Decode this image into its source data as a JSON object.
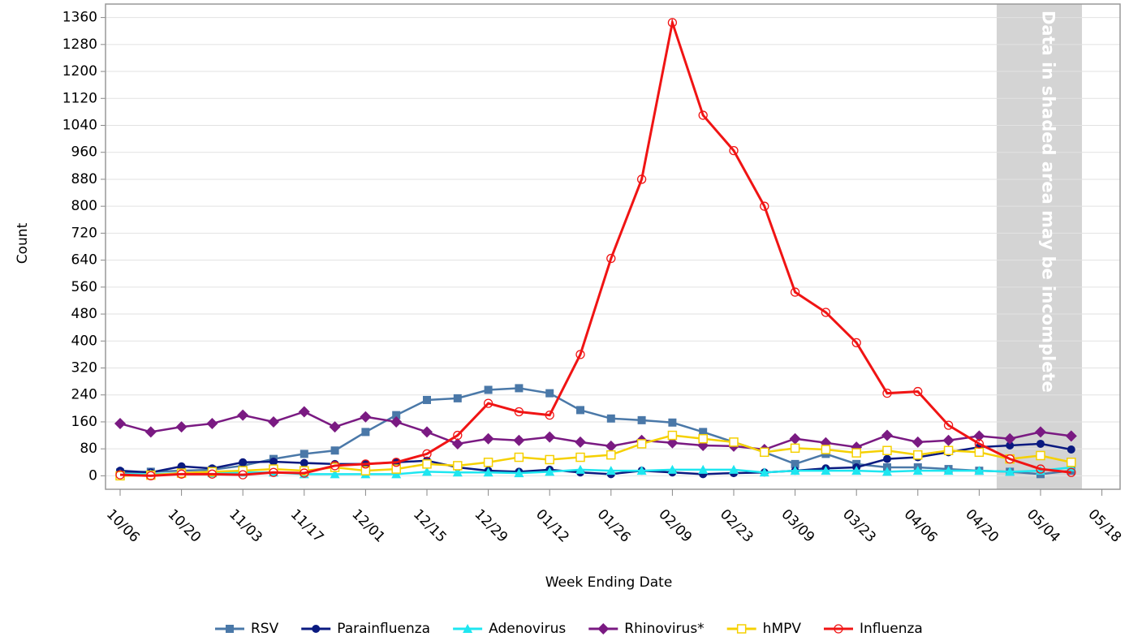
{
  "chart_data": {
    "type": "line",
    "x_label": "Week Ending Date",
    "y_label": "Count",
    "annotation": "Data in shaded area may be incomplete",
    "categories": [
      "10/06",
      null,
      "10/20",
      null,
      "11/03",
      null,
      "11/17",
      null,
      "12/01",
      null,
      "12/15",
      null,
      "12/29",
      null,
      "01/12",
      null,
      "01/26",
      null,
      "02/09",
      null,
      "02/23",
      null,
      "03/09",
      null,
      "03/23",
      null,
      "04/06",
      null,
      "04/20",
      null,
      "05/04",
      null,
      "05/18"
    ],
    "ylim": [
      -40,
      1400
    ],
    "yticks": [
      0,
      80,
      160,
      240,
      320,
      400,
      480,
      560,
      640,
      720,
      800,
      880,
      960,
      1040,
      1120,
      1200,
      1280,
      1360
    ],
    "grid": true,
    "legend": "bottom",
    "series": [
      {
        "name": "RSV",
        "color": "#4a78a8",
        "marker": "square",
        "values": [
          10,
          12,
          15,
          18,
          30,
          50,
          65,
          75,
          130,
          180,
          225,
          230,
          255,
          260,
          245,
          195,
          170,
          165,
          158,
          130,
          100,
          70,
          35,
          65,
          35,
          25,
          25,
          20,
          15,
          12,
          5,
          15,
          null
        ]
      },
      {
        "name": "Parainfluenza",
        "color": "#0a1a80",
        "marker": "circle",
        "values": [
          15,
          10,
          28,
          22,
          40,
          42,
          38,
          35,
          35,
          40,
          45,
          25,
          15,
          12,
          18,
          10,
          5,
          15,
          10,
          5,
          8,
          10,
          15,
          22,
          25,
          50,
          55,
          70,
          85,
          90,
          95,
          78,
          null
        ]
      },
      {
        "name": "Adenovirus",
        "color": "#1ee6f0",
        "marker": "triangle",
        "values": [
          5,
          5,
          8,
          8,
          10,
          10,
          5,
          5,
          5,
          5,
          12,
          10,
          10,
          8,
          12,
          18,
          15,
          15,
          18,
          18,
          18,
          10,
          15,
          15,
          15,
          12,
          15,
          15,
          15,
          12,
          15,
          25,
          null
        ]
      },
      {
        "name": "Rhinovirus*",
        "color": "#7a1a82",
        "marker": "diamond",
        "values": [
          155,
          130,
          145,
          155,
          180,
          160,
          190,
          145,
          175,
          160,
          130,
          95,
          110,
          105,
          115,
          100,
          88,
          105,
          98,
          90,
          88,
          78,
          110,
          98,
          85,
          120,
          100,
          105,
          118,
          110,
          130,
          118,
          null
        ]
      },
      {
        "name": "hMPV",
        "color": "#f5d000",
        "marker": "open-square",
        "values": [
          0,
          2,
          8,
          12,
          15,
          20,
          15,
          25,
          15,
          20,
          35,
          30,
          40,
          55,
          48,
          55,
          62,
          95,
          120,
          110,
          100,
          70,
          82,
          78,
          68,
          75,
          62,
          75,
          70,
          50,
          60,
          40,
          null
        ]
      },
      {
        "name": "Influenza",
        "color": "#f01414",
        "marker": "open-circle",
        "values": [
          3,
          0,
          5,
          5,
          3,
          10,
          8,
          30,
          35,
          40,
          65,
          120,
          215,
          190,
          180,
          360,
          645,
          880,
          1345,
          1070,
          965,
          800,
          545,
          485,
          395,
          245,
          250,
          150,
          95,
          50,
          20,
          10,
          null
        ]
      }
    ]
  }
}
